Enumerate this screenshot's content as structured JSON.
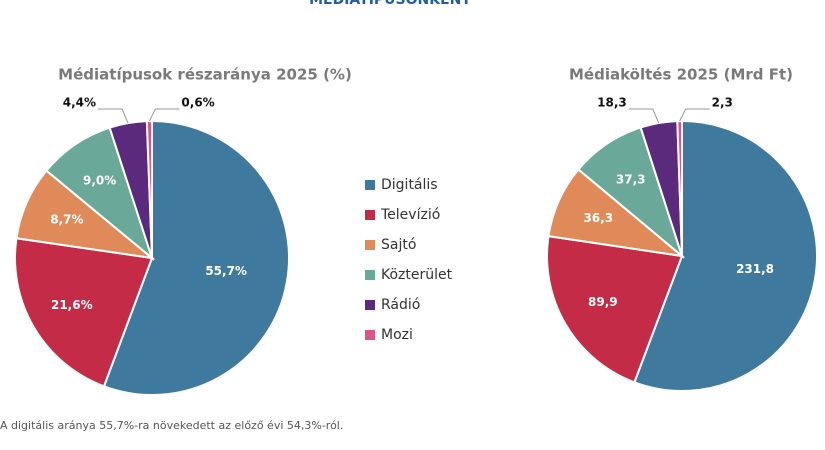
{
  "header": "MÉDIATÍPUSONKÉNT",
  "chart_data": [
    {
      "type": "pie",
      "title": "Médiatípusok részaránya 2025  (%)",
      "categories": [
        "Digitális",
        "Televízió",
        "Sajtó",
        "Közterület",
        "Rádió",
        "Mozi"
      ],
      "colors": [
        "#3f7a9e",
        "#c42b47",
        "#e08a5a",
        "#6aa89a",
        "#5b2a7c",
        "#e0508a"
      ],
      "values": [
        55.7,
        21.6,
        8.7,
        9.0,
        4.4,
        0.6
      ],
      "value_labels": [
        "55,7%",
        "21,6%",
        "8,7%",
        "9,0%",
        "4,4%",
        "0,6%"
      ]
    },
    {
      "type": "pie",
      "title": "Médiaköltés 2025 (Mrd Ft)",
      "values": [
        231.8,
        89.9,
        36.3,
        37.3,
        18.3,
        2.3
      ],
      "value_labels": [
        "231,8",
        "89,9",
        "36,3",
        "37,3",
        "18,3",
        "2,3"
      ]
    }
  ],
  "footnote": "A digitális aránya 55,7%-ra növekedett az előző évi 54,3%-ról."
}
